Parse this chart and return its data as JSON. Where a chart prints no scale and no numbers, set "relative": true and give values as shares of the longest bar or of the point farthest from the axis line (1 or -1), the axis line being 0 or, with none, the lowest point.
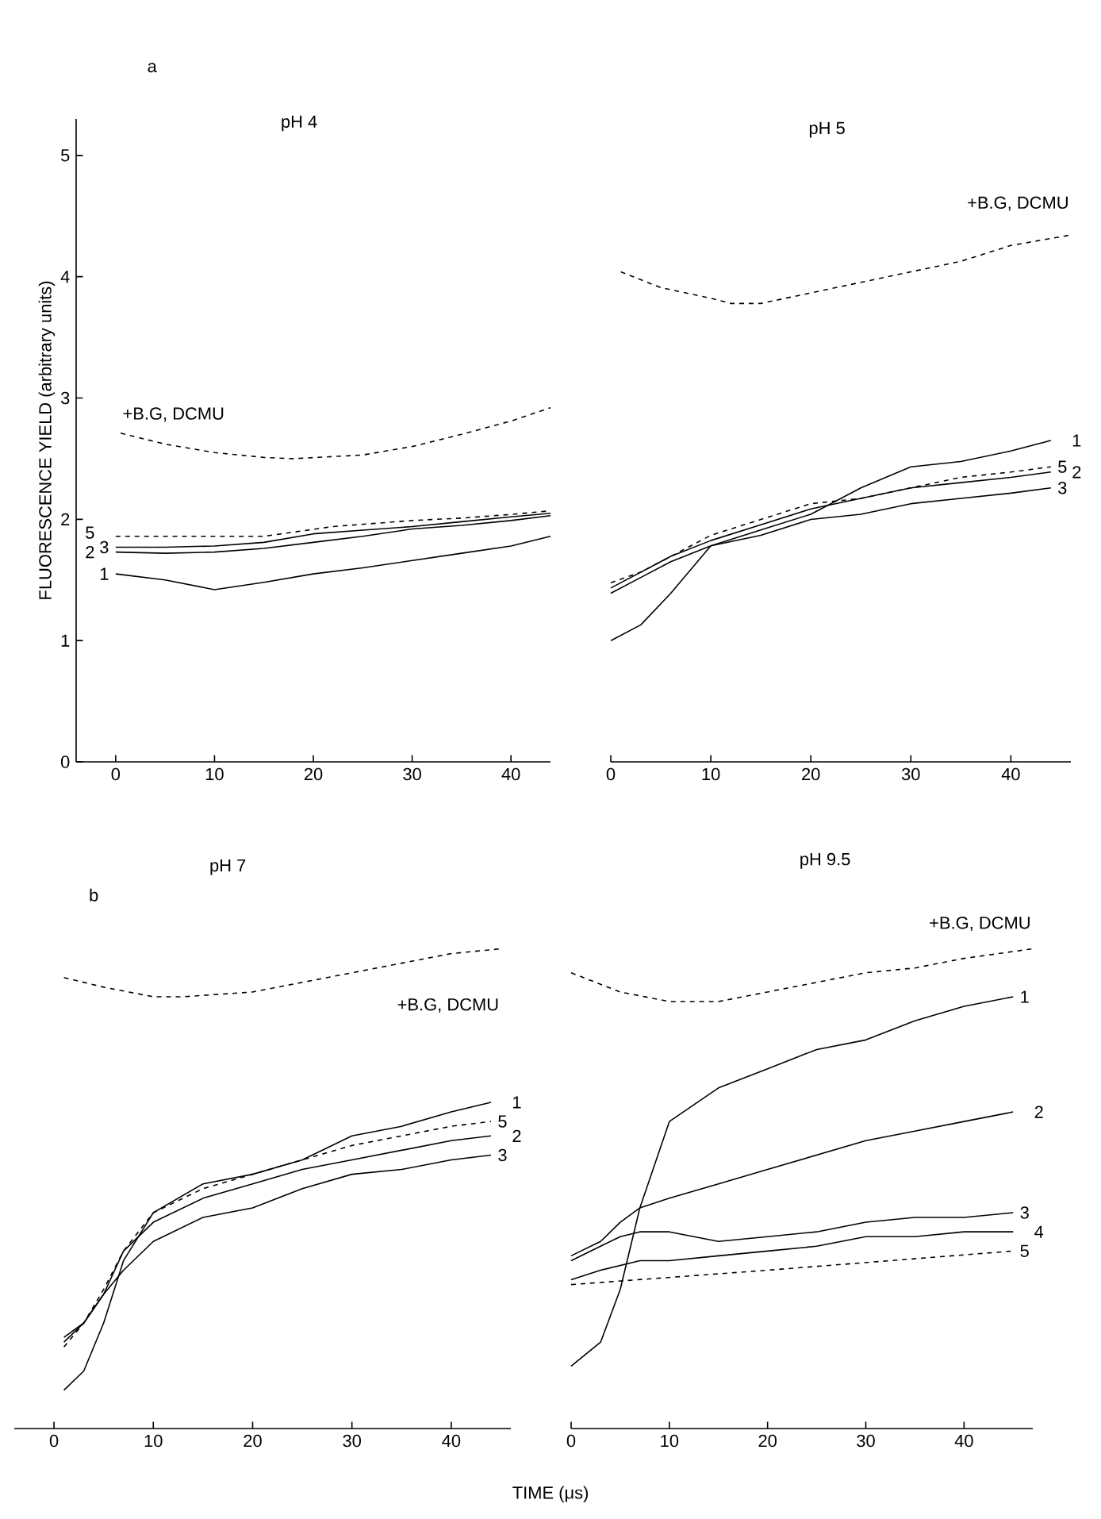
{
  "chart_data": [
    {
      "type": "line",
      "title": "pH 4",
      "ylabel": "FLUORESCENCE YIELD (arbitrary units)",
      "annotations": [
        "a"
      ],
      "xlim": [
        -4,
        44
      ],
      "xticks": [
        0,
        10,
        20,
        30,
        40
      ],
      "ylim": [
        0,
        5.3
      ],
      "yticks": [
        0,
        1,
        2,
        3,
        4,
        5
      ],
      "legend": false,
      "marker": "none",
      "grid": false,
      "series": [
        {
          "name": "+B.G, DCMU",
          "color": "#000000",
          "line_style": "dashed",
          "x": [
            0.5,
            5,
            10,
            15,
            18,
            25,
            30,
            35,
            40,
            44
          ],
          "values": [
            2.71,
            2.62,
            2.55,
            2.51,
            2.5,
            2.53,
            2.6,
            2.7,
            2.81,
            2.92
          ]
        },
        {
          "name": "5",
          "color": "#000000",
          "line_style": "dashed",
          "x": [
            0,
            5,
            10,
            15,
            22,
            30,
            35,
            40,
            44
          ],
          "values": [
            1.86,
            1.86,
            1.86,
            1.86,
            1.94,
            1.99,
            2.01,
            2.04,
            2.07
          ]
        },
        {
          "name": "3",
          "color": "#000000",
          "line_style": "solid",
          "x": [
            0,
            5,
            10,
            15,
            20,
            25,
            30,
            35,
            40,
            44
          ],
          "values": [
            1.77,
            1.77,
            1.78,
            1.81,
            1.88,
            1.91,
            1.94,
            1.98,
            2.02,
            2.05
          ]
        },
        {
          "name": "2",
          "color": "#000000",
          "line_style": "solid",
          "x": [
            0,
            5,
            10,
            15,
            20,
            25,
            30,
            35,
            40,
            44
          ],
          "values": [
            1.73,
            1.72,
            1.73,
            1.76,
            1.81,
            1.86,
            1.92,
            1.95,
            1.99,
            2.03
          ]
        },
        {
          "name": "1",
          "color": "#000000",
          "line_style": "solid",
          "x": [
            0,
            5,
            10,
            15,
            20,
            25,
            30,
            35,
            40,
            44
          ],
          "values": [
            1.55,
            1.5,
            1.42,
            1.48,
            1.55,
            1.6,
            1.66,
            1.72,
            1.78,
            1.86
          ]
        }
      ]
    },
    {
      "type": "line",
      "title": "pH 5",
      "xlim": [
        0,
        46
      ],
      "xticks": [
        0,
        10,
        20,
        30,
        40
      ],
      "relative": true,
      "tick_labels": "x",
      "legend": false,
      "marker": "none",
      "grid": false,
      "series": [
        {
          "name": "+B.G, DCMU",
          "color": "#000000",
          "line_style": "dashed",
          "x": [
            1,
            5,
            10,
            12,
            15,
            20,
            25,
            30,
            35,
            40,
            46
          ],
          "values": [
            0.93,
            0.9,
            0.88,
            0.87,
            0.87,
            0.89,
            0.91,
            0.93,
            0.95,
            0.98,
            1
          ]
        },
        {
          "name": "1",
          "color": "#000000",
          "line_style": "solid",
          "x": [
            0,
            3,
            6,
            10,
            15,
            20,
            25,
            30,
            35,
            40,
            44
          ],
          "values": [
            0.23,
            0.26,
            0.32,
            0.41,
            0.44,
            0.47,
            0.52,
            0.56,
            0.57,
            0.59,
            0.61
          ]
        },
        {
          "name": "5",
          "color": "#000000",
          "line_style": "dashed",
          "x": [
            0,
            3,
            6,
            10,
            15,
            20,
            25,
            30,
            35,
            40,
            44
          ],
          "values": [
            0.34,
            0.36,
            0.39,
            0.43,
            0.46,
            0.49,
            0.5,
            0.52,
            0.54,
            0.55,
            0.56
          ]
        },
        {
          "name": "2",
          "color": "#000000",
          "line_style": "solid",
          "x": [
            0,
            3,
            6,
            10,
            15,
            20,
            25,
            30,
            35,
            40,
            44
          ],
          "values": [
            0.33,
            0.36,
            0.39,
            0.42,
            0.45,
            0.48,
            0.5,
            0.52,
            0.53,
            0.54,
            0.55
          ]
        },
        {
          "name": "3",
          "color": "#000000",
          "line_style": "solid",
          "x": [
            0,
            3,
            6,
            10,
            15,
            20,
            25,
            30,
            35,
            40,
            44
          ],
          "values": [
            0.32,
            0.35,
            0.38,
            0.41,
            0.43,
            0.46,
            0.47,
            0.49,
            0.5,
            0.51,
            0.52
          ]
        }
      ]
    },
    {
      "type": "line",
      "title": "pH 7",
      "xlabel": "TIME (μs)",
      "annotations": [
        "b"
      ],
      "xlim": [
        -4,
        46
      ],
      "xticks": [
        0,
        10,
        20,
        30,
        40
      ],
      "relative": true,
      "tick_labels": "x",
      "legend": false,
      "marker": "none",
      "grid": false,
      "series": [
        {
          "name": "+B.G, DCMU",
          "color": "#000000",
          "line_style": "dashed",
          "x": [
            1,
            5,
            10,
            13,
            20,
            25,
            30,
            35,
            40,
            45
          ],
          "values": [
            0.94,
            0.92,
            0.9,
            0.9,
            0.91,
            0.93,
            0.95,
            0.97,
            0.99,
            1
          ]
        },
        {
          "name": "1",
          "color": "#000000",
          "line_style": "solid",
          "x": [
            1,
            3,
            5,
            7,
            10,
            15,
            20,
            25,
            30,
            35,
            40,
            44
          ],
          "values": [
            0.08,
            0.12,
            0.22,
            0.35,
            0.45,
            0.51,
            0.53,
            0.56,
            0.61,
            0.63,
            0.66,
            0.68
          ]
        },
        {
          "name": "5",
          "color": "#000000",
          "line_style": "dashed",
          "x": [
            1,
            3,
            5,
            7,
            10,
            15,
            20,
            25,
            30,
            35,
            40,
            44
          ],
          "values": [
            0.17,
            0.22,
            0.29,
            0.37,
            0.45,
            0.5,
            0.53,
            0.56,
            0.59,
            0.61,
            0.63,
            0.64
          ]
        },
        {
          "name": "2",
          "color": "#000000",
          "line_style": "solid",
          "x": [
            1,
            3,
            5,
            7,
            10,
            15,
            20,
            25,
            30,
            35,
            40,
            44
          ],
          "values": [
            0.19,
            0.22,
            0.28,
            0.37,
            0.43,
            0.48,
            0.51,
            0.54,
            0.56,
            0.58,
            0.6,
            0.61
          ]
        },
        {
          "name": "3",
          "color": "#000000",
          "line_style": "solid",
          "x": [
            1,
            3,
            5,
            7,
            10,
            15,
            20,
            25,
            30,
            35,
            40,
            44
          ],
          "values": [
            0.18,
            0.22,
            0.28,
            0.33,
            0.39,
            0.44,
            0.46,
            0.5,
            0.53,
            0.54,
            0.56,
            0.57
          ]
        }
      ]
    },
    {
      "type": "line",
      "title": "pH 9.5",
      "xlim": [
        0,
        47
      ],
      "xticks": [
        0,
        10,
        20,
        30,
        40
      ],
      "relative": true,
      "tick_labels": "x",
      "legend": false,
      "marker": "none",
      "grid": false,
      "series": [
        {
          "name": "+B.G, DCMU",
          "color": "#000000",
          "line_style": "dashed",
          "x": [
            0,
            5,
            10,
            15,
            20,
            25,
            30,
            35,
            40,
            47
          ],
          "values": [
            0.95,
            0.91,
            0.89,
            0.89,
            0.91,
            0.93,
            0.95,
            0.96,
            0.98,
            1
          ]
        },
        {
          "name": "1",
          "color": "#000000",
          "line_style": "solid",
          "x": [
            0,
            3,
            5,
            7,
            10,
            15,
            20,
            25,
            30,
            35,
            40,
            45
          ],
          "values": [
            0.13,
            0.18,
            0.29,
            0.46,
            0.64,
            0.71,
            0.75,
            0.79,
            0.81,
            0.85,
            0.88,
            0.9
          ]
        },
        {
          "name": "2",
          "color": "#000000",
          "line_style": "solid",
          "x": [
            0,
            3,
            5,
            7,
            10,
            15,
            20,
            25,
            30,
            35,
            40,
            45
          ],
          "values": [
            0.36,
            0.39,
            0.43,
            0.46,
            0.48,
            0.51,
            0.54,
            0.57,
            0.6,
            0.62,
            0.64,
            0.66
          ]
        },
        {
          "name": "3",
          "color": "#000000",
          "line_style": "solid",
          "x": [
            0,
            3,
            5,
            7,
            10,
            15,
            20,
            25,
            30,
            35,
            40,
            45
          ],
          "values": [
            0.35,
            0.38,
            0.4,
            0.41,
            0.41,
            0.39,
            0.4,
            0.41,
            0.43,
            0.44,
            0.44,
            0.45
          ]
        },
        {
          "name": "4",
          "color": "#000000",
          "line_style": "solid",
          "x": [
            0,
            3,
            5,
            7,
            10,
            15,
            20,
            25,
            30,
            35,
            40,
            45
          ],
          "values": [
            0.31,
            0.33,
            0.34,
            0.35,
            0.35,
            0.36,
            0.37,
            0.38,
            0.4,
            0.4,
            0.41,
            0.41
          ]
        },
        {
          "name": "5",
          "color": "#000000",
          "line_style": "dashed",
          "x": [
            0,
            20,
            45
          ],
          "values": [
            0.3,
            0.33,
            0.37
          ]
        }
      ]
    }
  ]
}
